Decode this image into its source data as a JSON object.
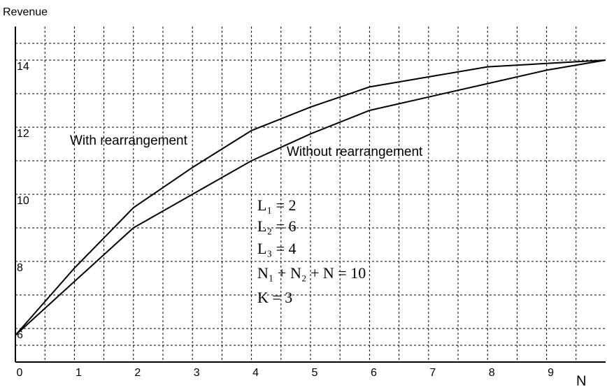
{
  "chart_data": {
    "type": "line",
    "y_label": "Revenue",
    "x_label": "N",
    "x": [
      0,
      1,
      2,
      3,
      4,
      5,
      6,
      7,
      8,
      9,
      10
    ],
    "series": [
      {
        "name": "With rearrangement",
        "color": "#000000",
        "values": [
          5.8,
          7.8,
          9.6,
          10.8,
          11.9,
          12.6,
          13.2,
          13.5,
          13.8,
          13.9,
          14.0
        ]
      },
      {
        "name": "Without rearrangement",
        "color": "#000000",
        "values": [
          5.8,
          7.4,
          9.0,
          10.0,
          11.0,
          11.8,
          12.5,
          12.9,
          13.3,
          13.7,
          14.0
        ]
      }
    ],
    "xlim": [
      0,
      10
    ],
    "xticks": [
      0,
      1,
      2,
      3,
      4,
      5,
      6,
      7,
      8,
      9
    ],
    "ylim": [
      5,
      15
    ],
    "yticks": [
      6,
      8,
      10,
      12,
      14
    ],
    "grid": true,
    "annotations": [
      "L₁ = 2",
      "L₂ = 6",
      "L₃ = 4",
      "N₁ + N₂ + N = 10",
      "K = 3"
    ]
  }
}
